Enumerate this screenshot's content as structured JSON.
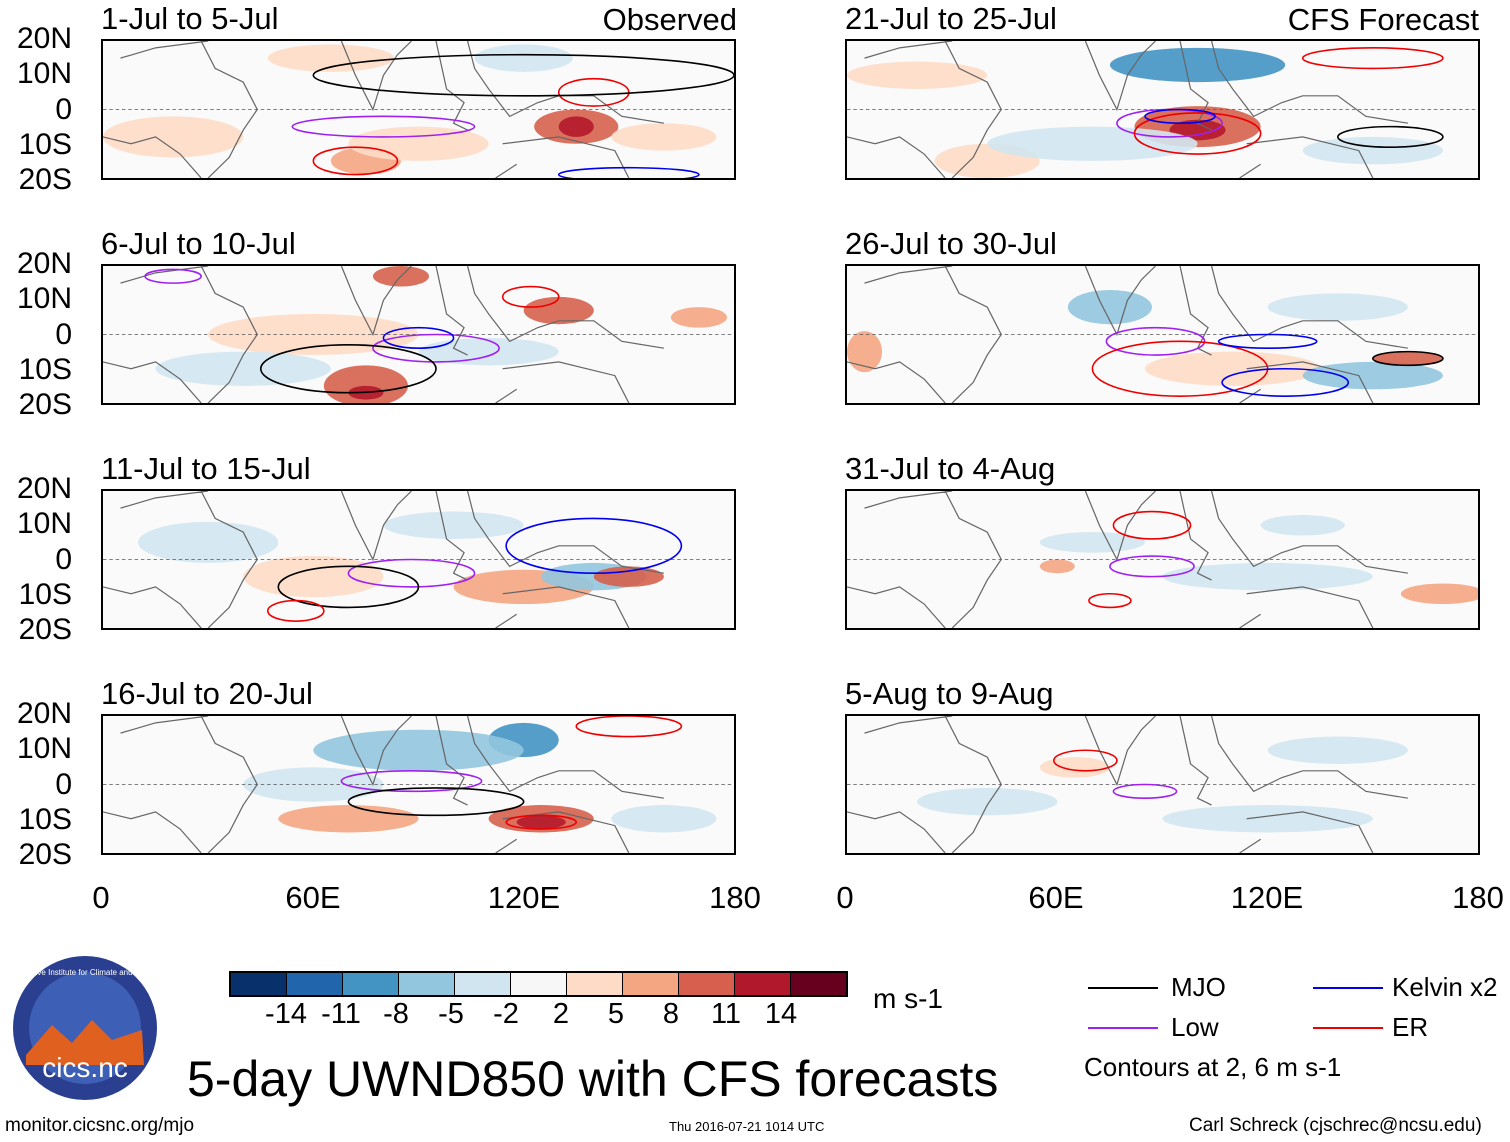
{
  "headers": {
    "left": "Observed",
    "right": "CFS Forecast"
  },
  "panels": {
    "left": [
      "1-Jul to 5-Jul",
      "6-Jul to 10-Jul",
      "11-Jul to 15-Jul",
      "16-Jul to 20-Jul"
    ],
    "right": [
      "21-Jul to 25-Jul",
      "26-Jul to 30-Jul",
      "31-Jul to 4-Aug",
      "5-Aug to 9-Aug"
    ]
  },
  "chart_data": {
    "type": "heatmap",
    "title": "5-day UWND850 with CFS forecasts",
    "variable": "UWND850",
    "units": "m s-1",
    "x_ticks": [
      "0",
      "60E",
      "120E",
      "180"
    ],
    "y_ticks": [
      "20N",
      "10N",
      "0",
      "10S",
      "20S"
    ],
    "xlim": [
      0,
      180
    ],
    "ylim": [
      -20,
      20
    ],
    "colorbar": {
      "ticks": [
        "-14",
        "-11",
        "-8",
        "-5",
        "-2",
        "2",
        "5",
        "8",
        "11",
        "14"
      ],
      "colors": [
        "#08306b",
        "#2166ac",
        "#4393c3",
        "#92c5de",
        "#d1e5f0",
        "#f7f7f7",
        "#fddbc7",
        "#f4a582",
        "#d6604d",
        "#b2182b",
        "#67001f"
      ]
    },
    "legend": [
      {
        "label": "MJO",
        "color": "#000000"
      },
      {
        "label": "Kelvin x2",
        "color": "#0000ee"
      },
      {
        "label": "Low",
        "color": "#a020f0"
      },
      {
        "label": "ER",
        "color": "#ee0000"
      }
    ],
    "contour_note": "Contours at 2, 6 m s-1"
  },
  "footer": {
    "left": "monitor.cicsnc.org/mjo",
    "center": "Thu 2016-07-21 1014 UTC",
    "right": "Carl Schreck (cjschrec@ncsu.edu)"
  },
  "logo": {
    "text": "cics.nc",
    "ring": "Cooperative Institute for Climate and Satellites"
  }
}
